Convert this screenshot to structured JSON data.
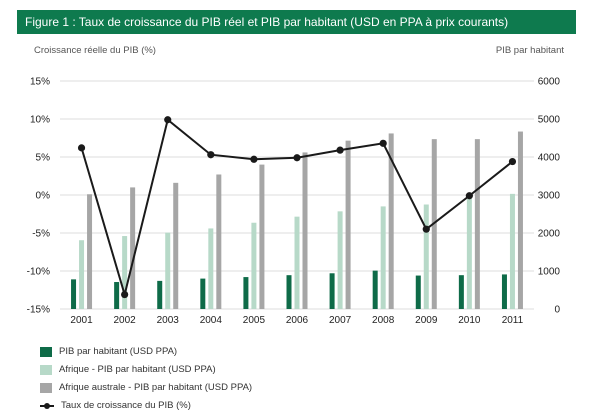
{
  "header": {
    "title": "Figure 1 : Taux de croissance du PIB réel et PIB par habitant (USD en PPA à prix courants)"
  },
  "axis_labels": {
    "left": "Croissance réelle du PIB (%)",
    "right": "PIB par habitant"
  },
  "chart_data": {
    "type": "bar",
    "categories": [
      "2001",
      "2002",
      "2003",
      "2004",
      "2005",
      "2006",
      "2007",
      "2008",
      "2009",
      "2010",
      "2011"
    ],
    "y_left": {
      "ticks": [
        "15%",
        "10%",
        "5%",
        "0%",
        "-5%",
        "-10%",
        "-15%"
      ],
      "ylim": [
        -15,
        15
      ]
    },
    "y_right": {
      "ticks": [
        "6000",
        "5000",
        "4000",
        "3000",
        "2000",
        "1000",
        "0"
      ],
      "ylim": [
        0,
        6000
      ]
    },
    "grid": true,
    "legend_position": "bottom-left",
    "series": [
      {
        "name": "PIB par habitant (USD PPA)",
        "axis": "right",
        "kind": "bar",
        "color": "#0e6b48",
        "values": [
          780,
          710,
          740,
          800,
          840,
          890,
          940,
          1010,
          880,
          890,
          910
        ]
      },
      {
        "name": "Afrique - PIB par habitant (USD PPA)",
        "axis": "right",
        "kind": "bar",
        "color": "#b7d9c8",
        "values": [
          1810,
          1920,
          2010,
          2120,
          2270,
          2430,
          2570,
          2700,
          2750,
          2900,
          3030
        ]
      },
      {
        "name": "Afrique australe - PIB par habitant (USD PPA)",
        "axis": "right",
        "kind": "bar",
        "color": "#a6a6a6",
        "values": [
          3020,
          3200,
          3320,
          3540,
          3800,
          4120,
          4430,
          4620,
          4470,
          4470,
          4670
        ]
      },
      {
        "name": "Taux de croissance du PIB (%)",
        "axis": "left",
        "kind": "line",
        "color": "#1a1a1a",
        "values": [
          6.2,
          -13.1,
          9.9,
          5.3,
          4.7,
          4.9,
          5.9,
          6.8,
          -4.5,
          -0.1,
          4.4
        ]
      }
    ]
  },
  "colors": {
    "header_bg": "#0e7a4e",
    "grid": "#dcdcdc"
  }
}
